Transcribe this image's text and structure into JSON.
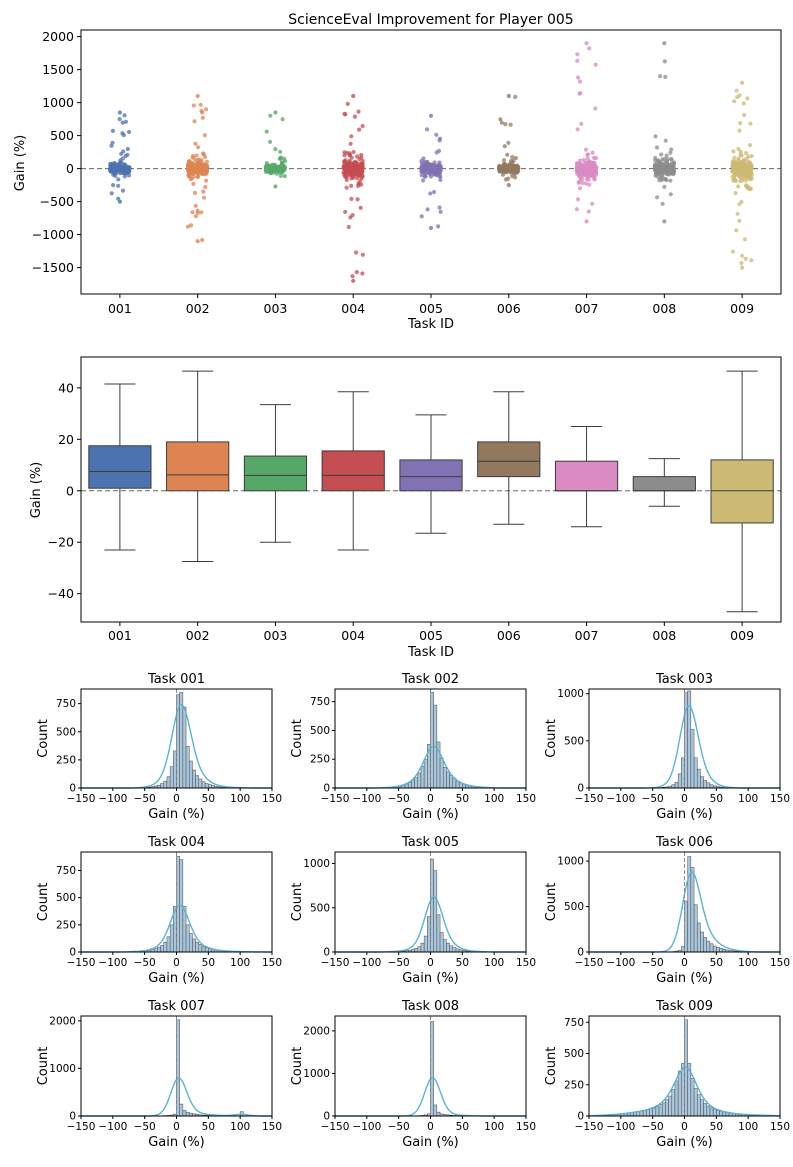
{
  "palette": [
    "#4c72b0",
    "#dd8452",
    "#55a868",
    "#c44e52",
    "#8172b3",
    "#937860",
    "#da8bc3",
    "#8c8c8c",
    "#ccb974"
  ],
  "kde_color": "#5ab4d6",
  "hist_color": "#a9c6dc",
  "chart_data": [
    {
      "type": "scatter",
      "subtype": "strip",
      "title": "ScienceEval Improvement for Player 005",
      "xlabel": "Task ID",
      "ylabel": "Gain (%)",
      "categories": [
        "001",
        "002",
        "003",
        "004",
        "005",
        "006",
        "007",
        "008",
        "009"
      ],
      "ylim": [
        -1900,
        2100
      ],
      "yticks": [
        -1500,
        -1000,
        -500,
        0,
        500,
        1000,
        1500,
        2000
      ],
      "reference_line": 0,
      "spread": [
        {
          "min": -500,
          "max": 850,
          "core": 150
        },
        {
          "min": -1100,
          "max": 1100,
          "core": 250
        },
        {
          "min": -270,
          "max": 850,
          "core": 100
        },
        {
          "min": -1700,
          "max": 1100,
          "core": 350
        },
        {
          "min": -900,
          "max": 800,
          "core": 200
        },
        {
          "min": -250,
          "max": 1100,
          "core": 150
        },
        {
          "min": -800,
          "max": 1900,
          "core": 300
        },
        {
          "min": -800,
          "max": 1900,
          "core": 300
        },
        {
          "min": -1500,
          "max": 1300,
          "core": 450
        }
      ]
    },
    {
      "type": "box",
      "xlabel": "Task ID",
      "ylabel": "Gain (%)",
      "categories": [
        "001",
        "002",
        "003",
        "004",
        "005",
        "006",
        "007",
        "008",
        "009"
      ],
      "ylim": [
        -51,
        52
      ],
      "yticks": [
        -40,
        -20,
        0,
        20,
        40
      ],
      "reference_line": 0,
      "boxes": [
        {
          "whislo": -23,
          "q1": 1,
          "med": 7.5,
          "q3": 17.5,
          "whishi": 41.5
        },
        {
          "whislo": -27.5,
          "q1": 0,
          "med": 6.2,
          "q3": 19,
          "whishi": 46.5
        },
        {
          "whislo": -20,
          "q1": 0,
          "med": 6,
          "q3": 13.5,
          "whishi": 33.5
        },
        {
          "whislo": -23,
          "q1": 0,
          "med": 6,
          "q3": 15.5,
          "whishi": 38.5
        },
        {
          "whislo": -16.5,
          "q1": 0,
          "med": 5.5,
          "q3": 12,
          "whishi": 29.5
        },
        {
          "whislo": -13,
          "q1": 5.5,
          "med": 11.5,
          "q3": 19,
          "whishi": 38.5
        },
        {
          "whislo": -14,
          "q1": 0,
          "med": 0,
          "q3": 11.5,
          "whishi": 25
        },
        {
          "whislo": -6,
          "q1": 0,
          "med": 0,
          "q3": 5.5,
          "whishi": 12.5
        },
        {
          "whislo": -47,
          "q1": -12.5,
          "med": 0,
          "q3": 12,
          "whishi": 46.5
        }
      ]
    },
    {
      "type": "histogram",
      "xlabel": "Gain (%)",
      "ylabel": "Count",
      "xlim": [
        -150,
        150
      ],
      "xticks": [
        -150,
        -100,
        -50,
        0,
        50,
        100,
        150
      ],
      "bin_width": 5,
      "panels": [
        {
          "title": "Task 001",
          "ylim": [
            0,
            880
          ],
          "yticks": [
            0,
            250,
            500,
            750
          ],
          "bins_x": [
            -55,
            -50,
            -45,
            -40,
            -35,
            -30,
            -25,
            -20,
            -15,
            -10,
            -5,
            0,
            5,
            10,
            15,
            20,
            25,
            30,
            35,
            40,
            45,
            50,
            55,
            60,
            65,
            70,
            75,
            80,
            85,
            90,
            95,
            100,
            105
          ],
          "bins_y": [
            3,
            5,
            8,
            12,
            18,
            25,
            40,
            60,
            100,
            190,
            330,
            830,
            850,
            720,
            370,
            240,
            160,
            110,
            80,
            55,
            40,
            30,
            22,
            15,
            10,
            8,
            6,
            5,
            4,
            3,
            2,
            2,
            1
          ],
          "kde_peak": 740
        },
        {
          "title": "Task 002",
          "ylim": [
            0,
            860
          ],
          "yticks": [
            0,
            250,
            500,
            750
          ],
          "bins_x": [
            -75,
            -70,
            -65,
            -60,
            -55,
            -50,
            -45,
            -40,
            -35,
            -30,
            -25,
            -20,
            -15,
            -10,
            -5,
            0,
            5,
            10,
            15,
            20,
            25,
            30,
            35,
            40,
            45,
            50,
            55,
            60,
            65,
            70,
            75,
            80,
            85,
            90,
            95
          ],
          "bins_y": [
            4,
            5,
            6,
            8,
            12,
            18,
            25,
            35,
            50,
            70,
            90,
            130,
            190,
            250,
            380,
            830,
            720,
            400,
            260,
            180,
            140,
            110,
            85,
            60,
            45,
            35,
            28,
            20,
            15,
            12,
            9,
            6,
            5,
            3,
            2
          ],
          "kde_peak": 360
        },
        {
          "title": "Task 003",
          "ylim": [
            0,
            1050
          ],
          "yticks": [
            0,
            500,
            1000
          ],
          "bins_x": [
            -45,
            -40,
            -35,
            -30,
            -25,
            -20,
            -15,
            -10,
            -5,
            0,
            5,
            10,
            15,
            20,
            25,
            30,
            35,
            40,
            45,
            50,
            55,
            60,
            65
          ],
          "bins_y": [
            3,
            5,
            8,
            12,
            20,
            35,
            60,
            150,
            320,
            1010,
            1030,
            620,
            320,
            200,
            120,
            80,
            55,
            35,
            22,
            15,
            10,
            6,
            4
          ],
          "kde_peak": 870
        },
        {
          "title": "Task 004",
          "ylim": [
            0,
            920
          ],
          "yticks": [
            0,
            250,
            500,
            750
          ],
          "bins_x": [
            -75,
            -70,
            -65,
            -60,
            -55,
            -50,
            -45,
            -40,
            -35,
            -30,
            -25,
            -20,
            -15,
            -10,
            -5,
            0,
            5,
            10,
            15,
            20,
            25,
            30,
            35,
            40,
            45,
            50,
            55,
            60,
            65,
            70,
            75,
            80,
            85,
            90,
            95,
            100,
            105,
            110,
            115,
            120,
            125,
            130
          ],
          "bins_y": [
            3,
            4,
            5,
            6,
            8,
            12,
            18,
            25,
            35,
            45,
            60,
            90,
            140,
            250,
            420,
            880,
            850,
            420,
            250,
            170,
            120,
            90,
            70,
            50,
            40,
            30,
            25,
            20,
            15,
            12,
            10,
            8,
            6,
            5,
            4,
            3,
            3,
            2,
            2,
            1,
            1,
            1
          ],
          "kde_peak": 430
        },
        {
          "title": "Task 005",
          "ylim": [
            0,
            1130
          ],
          "yticks": [
            0,
            500,
            1000
          ],
          "bins_x": [
            -65,
            -60,
            -55,
            -50,
            -45,
            -40,
            -35,
            -30,
            -25,
            -20,
            -15,
            -10,
            -5,
            0,
            5,
            10,
            15,
            20,
            25,
            30,
            35,
            40,
            45,
            50,
            55,
            60,
            65,
            70,
            75,
            80,
            85,
            90
          ],
          "bins_y": [
            3,
            4,
            5,
            7,
            10,
            14,
            20,
            28,
            40,
            60,
            100,
            180,
            400,
            1050,
            920,
            420,
            220,
            140,
            100,
            70,
            50,
            35,
            25,
            18,
            12,
            9,
            6,
            4,
            3,
            2,
            2,
            1
          ],
          "kde_peak": 620
        },
        {
          "title": "Task 006",
          "ylim": [
            0,
            1100
          ],
          "yticks": [
            0,
            500,
            1000
          ],
          "bins_x": [
            -25,
            -20,
            -15,
            -10,
            -5,
            0,
            5,
            10,
            15,
            20,
            25,
            30,
            35,
            40,
            45,
            50,
            55,
            60,
            65,
            70,
            75,
            80,
            85,
            90,
            95,
            100
          ],
          "bins_y": [
            3,
            5,
            10,
            20,
            60,
            560,
            1050,
            930,
            520,
            320,
            220,
            160,
            120,
            90,
            65,
            50,
            40,
            30,
            22,
            16,
            12,
            9,
            7,
            5,
            3,
            2
          ],
          "kde_peak": 880
        },
        {
          "title": "Task 007",
          "ylim": [
            0,
            2100
          ],
          "yticks": [
            0,
            1000,
            2000
          ],
          "bins_x": [
            -35,
            -30,
            -25,
            -20,
            -15,
            -10,
            -5,
            0,
            5,
            10,
            15,
            20,
            25,
            30,
            35,
            40,
            45,
            50,
            55,
            60,
            65,
            70,
            75,
            80,
            85,
            90,
            95,
            100,
            105
          ],
          "bins_y": [
            2,
            3,
            5,
            8,
            12,
            20,
            40,
            2020,
            250,
            120,
            80,
            60,
            45,
            35,
            25,
            20,
            15,
            12,
            10,
            8,
            6,
            5,
            4,
            3,
            3,
            2,
            2,
            90,
            2
          ],
          "kde_peak": 800
        },
        {
          "title": "Task 008",
          "ylim": [
            0,
            2350
          ],
          "yticks": [
            0,
            1000,
            2000
          ],
          "bins_x": [
            -30,
            -25,
            -20,
            -15,
            -10,
            -5,
            0,
            5,
            10,
            15,
            20,
            25,
            30,
            35,
            40,
            45,
            50,
            55,
            60,
            65,
            70,
            75,
            80
          ],
          "bins_y": [
            2,
            4,
            8,
            14,
            25,
            50,
            2220,
            260,
            90,
            50,
            35,
            25,
            18,
            12,
            9,
            7,
            5,
            4,
            3,
            2,
            2,
            1,
            1
          ],
          "kde_peak": 900
        },
        {
          "title": "Task 009",
          "ylim": [
            0,
            800
          ],
          "yticks": [
            0,
            250,
            500,
            750
          ],
          "bins_x": [
            -140,
            -135,
            -130,
            -125,
            -120,
            -115,
            -110,
            -105,
            -100,
            -95,
            -90,
            -85,
            -80,
            -75,
            -70,
            -65,
            -60,
            -55,
            -50,
            -45,
            -40,
            -35,
            -30,
            -25,
            -20,
            -15,
            -10,
            -5,
            0,
            5,
            10,
            15,
            20,
            25,
            30,
            35,
            40,
            45,
            50,
            55,
            60,
            65,
            70,
            75,
            80,
            85,
            90,
            95,
            100,
            105,
            110,
            115,
            120,
            125,
            130,
            135,
            140
          ],
          "bins_y": [
            5,
            6,
            7,
            8,
            10,
            12,
            14,
            16,
            18,
            20,
            24,
            28,
            32,
            36,
            40,
            45,
            50,
            58,
            65,
            75,
            90,
            105,
            130,
            160,
            210,
            280,
            360,
            420,
            770,
            420,
            300,
            220,
            170,
            130,
            100,
            80,
            65,
            55,
            45,
            38,
            32,
            28,
            24,
            20,
            17,
            15,
            13,
            11,
            10,
            9,
            8,
            7,
            6,
            5,
            5,
            4,
            4
          ],
          "kde_peak": 390
        }
      ]
    }
  ]
}
